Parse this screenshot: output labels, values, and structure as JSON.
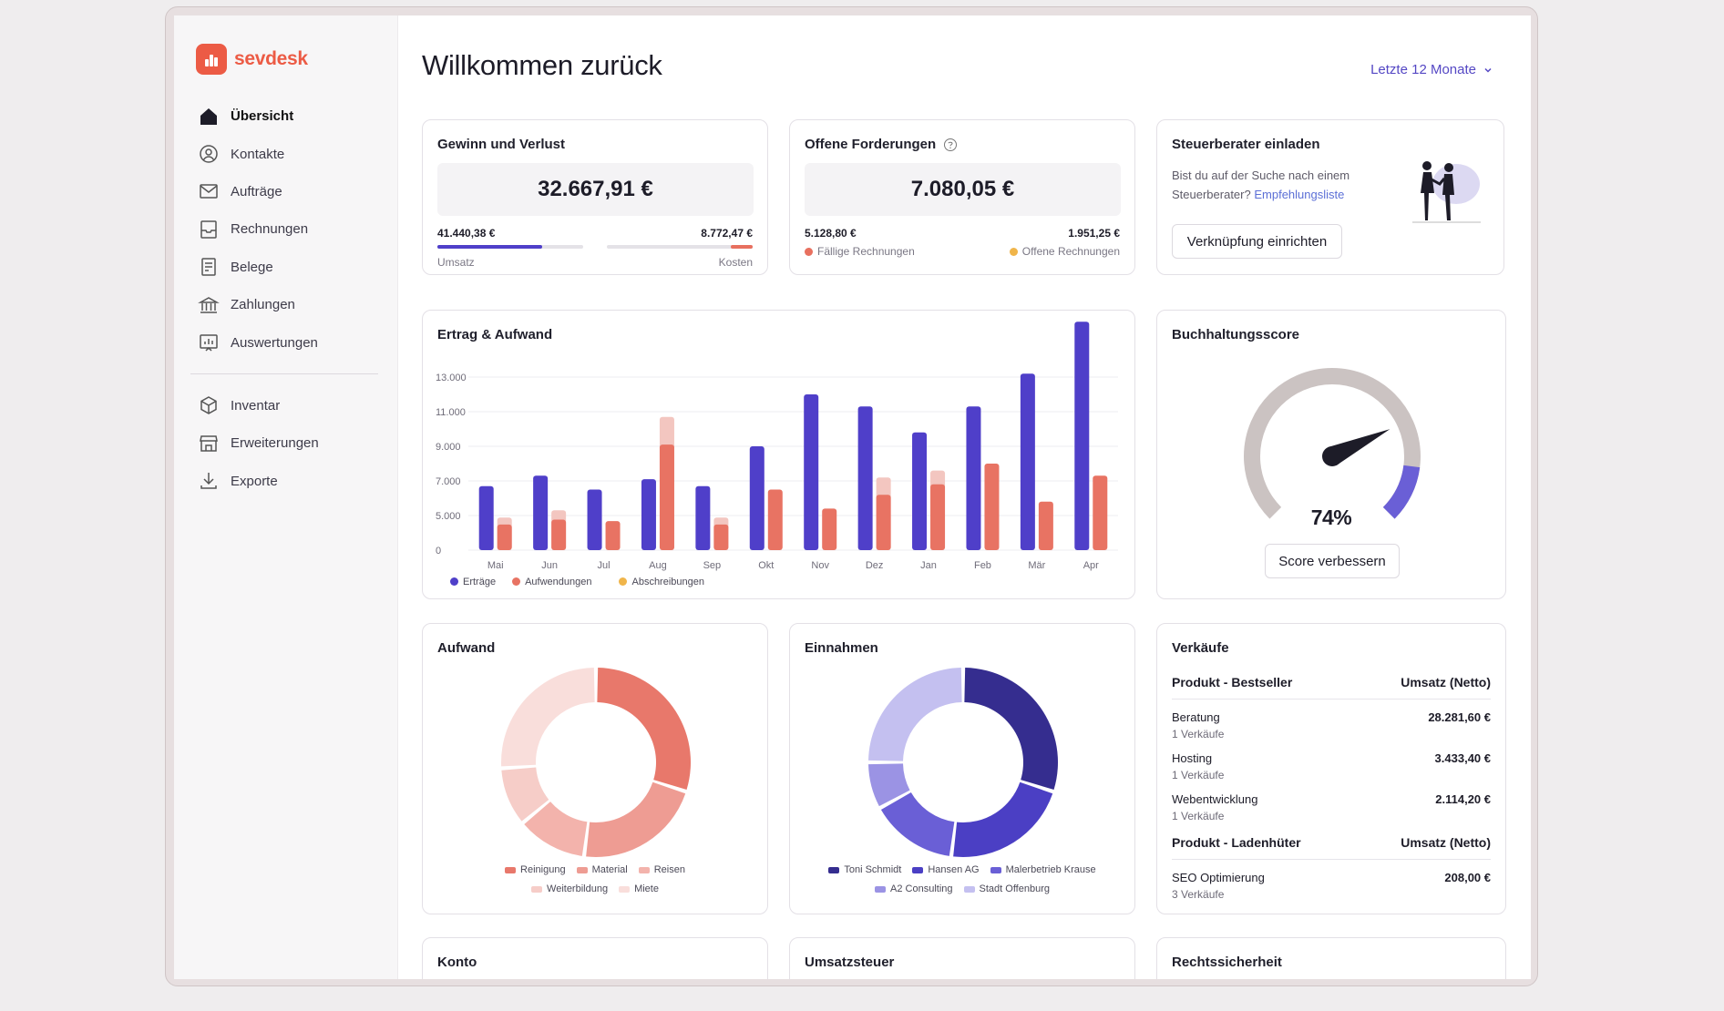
{
  "brand": {
    "name": "sevdesk",
    "color": "#ec5b45"
  },
  "nav": {
    "items": [
      {
        "label": "Übersicht",
        "icon": "home-icon",
        "active": true
      },
      {
        "label": "Kontakte",
        "icon": "contacts-icon"
      },
      {
        "label": "Aufträge",
        "icon": "mail-icon"
      },
      {
        "label": "Rechnungen",
        "icon": "invoice-icon"
      },
      {
        "label": "Belege",
        "icon": "receipt-icon"
      },
      {
        "label": "Zahlungen",
        "icon": "bank-icon"
      },
      {
        "label": "Auswertungen",
        "icon": "report-icon"
      }
    ],
    "items2": [
      {
        "label": "Inventar",
        "icon": "box-icon"
      },
      {
        "label": "Erweiterungen",
        "icon": "store-icon"
      },
      {
        "label": "Exporte",
        "icon": "download-icon"
      }
    ]
  },
  "header": {
    "title": "Willkommen zurück",
    "period": "Letzte 12 Monate"
  },
  "gewinn": {
    "title": "Gewinn und Verlust",
    "total": "32.667,91 €",
    "umsatz_value": "41.440,38 €",
    "umsatz_label": "Umsatz",
    "kosten_value": "8.772,47 €",
    "kosten_label": "Kosten",
    "umsatz_fraction": 0.72,
    "kosten_fraction": 0.15
  },
  "forderungen": {
    "title": "Offene Forderungen",
    "total": "7.080,05 €",
    "faellig_value": "5.128,80 €",
    "faellig_label": "Fällige Rechnungen",
    "offen_value": "1.951,25 €",
    "offen_label": "Offene Rechnungen"
  },
  "steuerberater": {
    "title": "Steuerberater einladen",
    "text1": "Bist du auf der Suche nach einem",
    "text2": "Steuerberater?",
    "link": "Empfehlungsliste",
    "button": "Verknüpfung einrichten"
  },
  "ertrag": {
    "title": "Ertrag & Aufwand",
    "legend": [
      {
        "label": "Erträge",
        "color": "#4f3fc9"
      },
      {
        "label": "Aufwendungen",
        "color": "#e87363"
      },
      {
        "label": "Abschreibungen",
        "color": "#f0b54a"
      }
    ]
  },
  "chart_data": {
    "type": "bar",
    "categories": [
      "Mai",
      "Jun",
      "Jul",
      "Aug",
      "Sep",
      "Okt",
      "Nov",
      "Dez",
      "Jan",
      "Feb",
      "Mär",
      "Apr"
    ],
    "series": [
      {
        "name": "Erträge",
        "values": [
          6700,
          7300,
          6500,
          7100,
          6700,
          9000,
          12000,
          11300,
          9800,
          11300,
          13200,
          16200
        ],
        "color": "#4f3fc9"
      },
      {
        "name": "Aufwendungen",
        "values": [
          3700,
          4400,
          4200,
          9100,
          3700,
          6500,
          5400,
          6200,
          6800,
          8000,
          5800,
          7300
        ],
        "color": "#e87363"
      },
      {
        "name": "Abschreibungen",
        "values": [
          1000,
          900,
          0,
          1600,
          1000,
          0,
          0,
          1000,
          800,
          0,
          0,
          0
        ],
        "color": "#f3c6c0"
      }
    ],
    "yticks": [
      "0",
      "5.000",
      "7.000",
      "9.000",
      "11.000",
      "13.000"
    ],
    "ylim": [
      0,
      20000
    ],
    "grid": true
  },
  "score": {
    "title": "Buchhaltungsscore",
    "value": "74%",
    "fraction": 0.74,
    "button": "Score verbessern"
  },
  "aufwand": {
    "title": "Aufwand",
    "slices": [
      {
        "label": "Reinigung",
        "value": 30,
        "color": "#e8786b"
      },
      {
        "label": "Material",
        "value": 22,
        "color": "#ee9c93"
      },
      {
        "label": "Reisen",
        "value": 12,
        "color": "#f3b3ac"
      },
      {
        "label": "Weiterbildung",
        "value": 10,
        "color": "#f6cdc8"
      },
      {
        "label": "Miete",
        "value": 26,
        "color": "#f9dedb"
      }
    ]
  },
  "einnahmen": {
    "title": "Einnahmen",
    "slices": [
      {
        "label": "Toni Schmidt",
        "value": 30,
        "color": "#352d8f"
      },
      {
        "label": "Hansen AG",
        "value": 22,
        "color": "#4b3fc4"
      },
      {
        "label": "Malerbetrieb Krause",
        "value": 15,
        "color": "#6a5fd6"
      },
      {
        "label": "A2 Consulting",
        "value": 8,
        "color": "#9b93e4"
      },
      {
        "label": "Stadt Offenburg",
        "value": 25,
        "color": "#c4c0f0"
      }
    ]
  },
  "verkaeufe": {
    "title": "Verkäufe",
    "head1": "Produkt - Bestseller",
    "head_col": "Umsatz (Netto)",
    "bestseller": [
      {
        "name": "Beratung",
        "sub": "1 Verkäufe",
        "value": "28.281,60 €"
      },
      {
        "name": "Hosting",
        "sub": "1 Verkäufe",
        "value": "3.433,40 €"
      },
      {
        "name": "Webentwicklung",
        "sub": "1 Verkäufe",
        "value": "2.114,20 €"
      }
    ],
    "head2": "Produkt - Ladenhüter",
    "head_col2": "Umsatz (Netto)",
    "ladenhueter": [
      {
        "name": "SEO Optimierung",
        "sub": "3 Verkäufe",
        "value": "208,00 €"
      }
    ]
  },
  "bottom_cards": {
    "konto": "Konto",
    "umsatzsteuer": "Umsatzsteuer",
    "rechtssicherheit": "Rechtssicherheit"
  }
}
